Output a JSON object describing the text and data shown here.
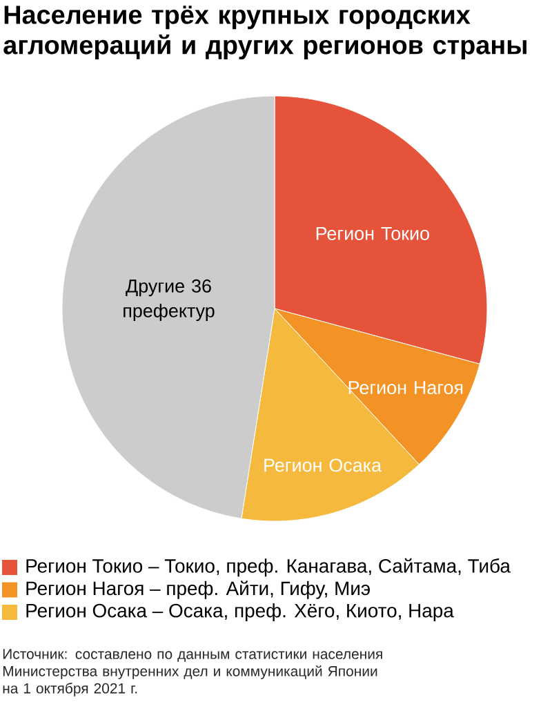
{
  "chart_data": {
    "type": "pie",
    "title": "Население трёх крупных городских агломераций и других регионов страны",
    "categories": [
      "Регион Токио",
      "Регион Нагоя",
      "Регион Осака",
      "Другие 36 префектур"
    ],
    "values": [
      29.2,
      8.9,
      14.4,
      47.5
    ],
    "colors": [
      "#e5533a",
      "#f39325",
      "#f5b93e",
      "#cccccc"
    ],
    "annotations": [
      "Регион Токио – Токио, преф. Канагава, Сайтама, Тиба",
      "Регион Нагоя – преф. Айти, Гифу, Миэ",
      "Регион Осака – Осака, преф. Хёго, Киото, Нара",
      "Источник: составлено по данным статистики населения Министерства внутренних дел и коммуникаций Японии на 1 октября 2021 г."
    ]
  }
}
